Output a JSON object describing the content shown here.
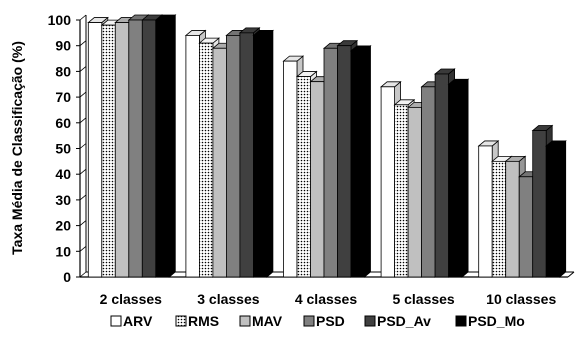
{
  "chart_data": {
    "type": "bar",
    "style": "3d-clustered-column",
    "ylabel": "Taxa Média  de Classificação (%)",
    "xlabel": "",
    "ylim": [
      0,
      100
    ],
    "yticks": [
      0,
      10,
      20,
      30,
      40,
      50,
      60,
      70,
      80,
      90,
      100
    ],
    "grid": false,
    "legend_position": "bottom",
    "categories": [
      "2 classes",
      "3 classes",
      "4 classes",
      "5 classes",
      "10 classes"
    ],
    "series": [
      {
        "name": "ARV",
        "values": [
          99,
          94,
          84,
          74,
          51
        ],
        "color": "#ffffff",
        "pattern": "none"
      },
      {
        "name": "RMS",
        "values": [
          98,
          91,
          78,
          67,
          45
        ],
        "color": "#ffffff",
        "pattern": "dots"
      },
      {
        "name": "MAV",
        "values": [
          99,
          89,
          76,
          66,
          45
        ],
        "color": "#c0c0c0",
        "pattern": "none"
      },
      {
        "name": "PSD",
        "values": [
          100,
          94,
          89,
          74,
          39
        ],
        "color": "#808080",
        "pattern": "none"
      },
      {
        "name": "PSD_Av",
        "values": [
          100,
          95,
          90,
          79,
          57
        ],
        "color": "#404040",
        "pattern": "none"
      },
      {
        "name": "PSD_Mo",
        "values": [
          100,
          94,
          88,
          75,
          51
        ],
        "color": "#000000",
        "pattern": "none"
      }
    ]
  }
}
